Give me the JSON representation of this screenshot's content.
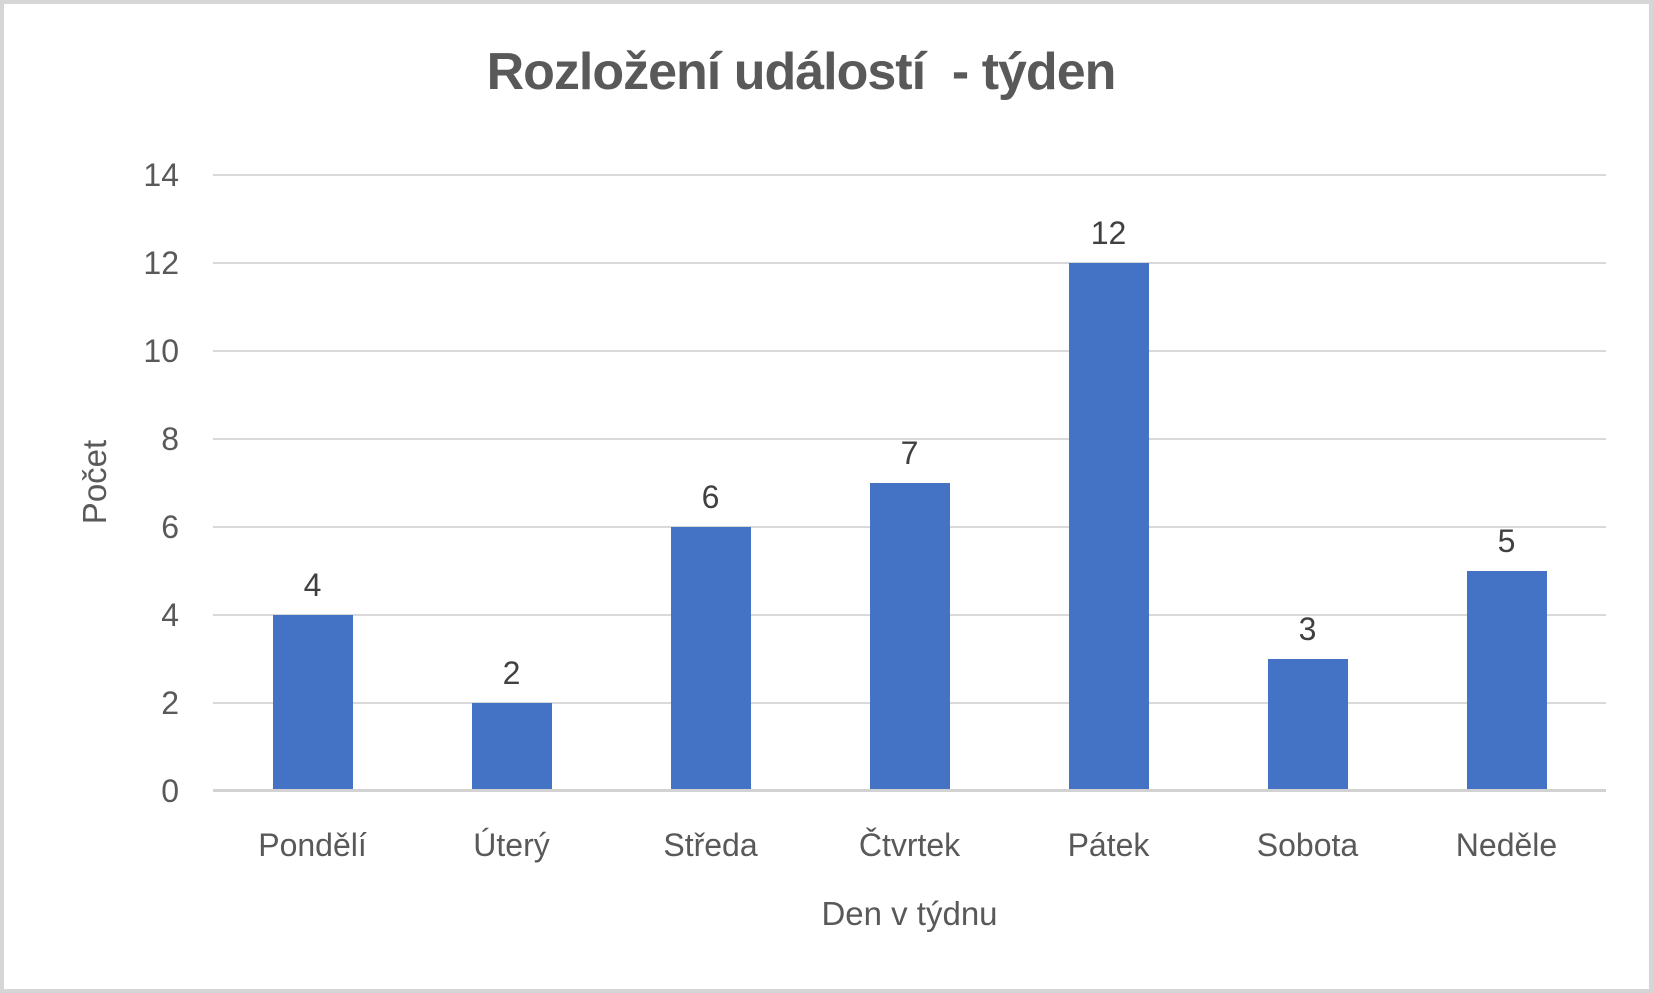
{
  "chart_data": {
    "type": "bar",
    "title": "Rozložení událostí  - týden",
    "categories": [
      "Pondělí",
      "Úterý",
      "Středa",
      "Čtvrtek",
      "Pátek",
      "Sobota",
      "Neděle"
    ],
    "values": [
      4,
      2,
      6,
      7,
      12,
      3,
      5
    ],
    "xlabel": "Den v týdnu",
    "ylabel": "Počet",
    "ylim": [
      0,
      14
    ],
    "yticks": [
      0,
      2,
      4,
      6,
      8,
      10,
      12,
      14
    ],
    "grid": "horizontal",
    "legend": "none",
    "data_labels": true,
    "series_name": "Počet",
    "colors": {
      "bar": "#4472C4",
      "gridline": "#D9D9D9",
      "axis_line": "#D2D2D2",
      "tick_text": "#595959",
      "data_label_text": "#404040",
      "title_text": "#595959",
      "frame_border": "#D6D6D6",
      "background": "#FFFFFF"
    }
  }
}
